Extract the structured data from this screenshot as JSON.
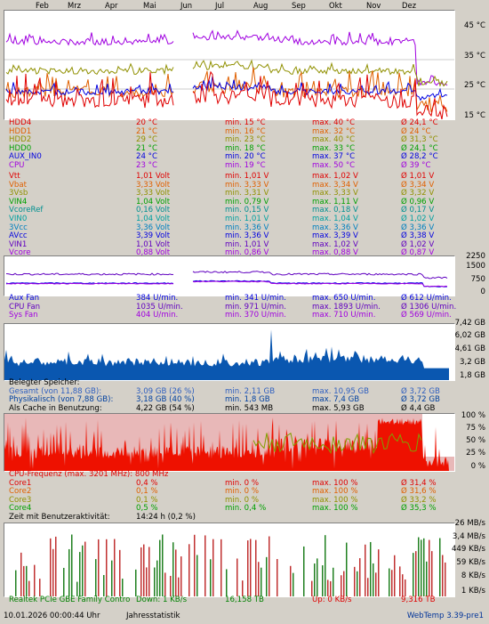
{
  "months": [
    "Feb",
    "Mrz",
    "Apr",
    "Mai",
    "Jun",
    "Jul",
    "Aug",
    "Sep",
    "Okt",
    "Nov",
    "Dez"
  ],
  "temp_axis": [
    "45 °C",
    "35 °C",
    "25 °C",
    "15 °C"
  ],
  "temps": [
    {
      "name": "HDD4",
      "cur": "20 °C",
      "min": "min. 15 °C",
      "max": "max. 40 °C",
      "avg": "Ø 24,1 °C",
      "color": "#e00000"
    },
    {
      "name": "HDD1",
      "cur": "21 °C",
      "min": "min. 16 °C",
      "max": "max. 32 °C",
      "avg": "Ø 24 °C",
      "color": "#e06000"
    },
    {
      "name": "HDD2",
      "cur": "29 °C",
      "min": "min. 23 °C",
      "max": "max. 40 °C",
      "avg": "Ø 31,3 °C",
      "color": "#909000"
    },
    {
      "name": "HDD0",
      "cur": "21 °C",
      "min": "min. 18 °C",
      "max": "max. 33 °C",
      "avg": "Ø 24,1 °C",
      "color": "#00a000"
    },
    {
      "name": "AUX_IN0",
      "cur": "24 °C",
      "min": "min. 20 °C",
      "max": "max. 37 °C",
      "avg": "Ø 28,2 °C",
      "color": "#0000e0"
    },
    {
      "name": "CPU",
      "cur": "23 °C",
      "min": "min. 19 °C",
      "max": "max. 50 °C",
      "avg": "Ø 39 °C",
      "color": "#a000e0"
    }
  ],
  "volts": [
    {
      "name": "Vtt",
      "cur": "1,01 Volt",
      "min": "min. 1,01 V",
      "max": "max. 1,02 V",
      "avg": "Ø 1,01 V",
      "color": "#e00000"
    },
    {
      "name": "Vbat",
      "cur": "3,33 Volt",
      "min": "min. 3,33 V",
      "max": "max. 3,34 V",
      "avg": "Ø 3,34 V",
      "color": "#e06000"
    },
    {
      "name": "3Vsb",
      "cur": "3,33 Volt",
      "min": "min. 3,31 V",
      "max": "max. 3,33 V",
      "avg": "Ø 3,32 V",
      "color": "#909000"
    },
    {
      "name": "VIN4",
      "cur": "1,04 Volt",
      "min": "min. 0,79 V",
      "max": "max. 1,11 V",
      "avg": "Ø 0,96 V",
      "color": "#00a000"
    },
    {
      "name": "VcoreRef",
      "cur": "0,16 Volt",
      "min": "min. 0,15 V",
      "max": "max. 0,18 V",
      "avg": "Ø 0,17 V",
      "color": "#009090"
    },
    {
      "name": "VIN0",
      "cur": "1,04 Volt",
      "min": "min. 1,01 V",
      "max": "max. 1,04 V",
      "avg": "Ø 1,02 V",
      "color": "#00a0a0"
    },
    {
      "name": "3Vcc",
      "cur": "3,36 Volt",
      "min": "min. 3,36 V",
      "max": "max. 3,36 V",
      "avg": "Ø 3,36 V",
      "color": "#0080c0"
    },
    {
      "name": "AVcc",
      "cur": "3,39 Volt",
      "min": "min. 3,36 V",
      "max": "max. 3,39 V",
      "avg": "Ø 3,38 V",
      "color": "#0000e0"
    },
    {
      "name": "VIN1",
      "cur": "1,01 Volt",
      "min": "min. 1,01 V",
      "max": "max. 1,02 V",
      "avg": "Ø 1,02 V",
      "color": "#6000c0"
    },
    {
      "name": "Vcore",
      "cur": "0,88 Volt",
      "min": "min. 0,86 V",
      "max": "max. 0,88 V",
      "avg": "Ø 0,87 V",
      "color": "#a000e0"
    }
  ],
  "fan_axis": [
    "2250",
    "1500",
    "750",
    "0"
  ],
  "fans": [
    {
      "name": "Aux Fan",
      "cur": "384 U/min.",
      "min": "min. 341 U/min.",
      "max": "max. 650 U/min.",
      "avg": "Ø 612 U/min.",
      "color": "#0000e0"
    },
    {
      "name": "CPU Fan",
      "cur": "1035 U/min.",
      "min": "min. 971 U/min.",
      "max": "max. 1893 U/min.",
      "avg": "Ø 1306 U/min.",
      "color": "#6000c0"
    },
    {
      "name": "Sys Fan",
      "cur": "404 U/min.",
      "min": "min. 370 U/min.",
      "max": "max. 710 U/min.",
      "avg": "Ø 569 U/min.",
      "color": "#a000e0"
    }
  ],
  "mem_axis": [
    "7,42 GB",
    "6,02 GB",
    "4,61 GB",
    "3,2 GB",
    "1,8 GB"
  ],
  "mem_title": "Belegter Speicher:",
  "mem": [
    {
      "name": "Gesamt (von 11,88 GB):",
      "cur": "3,09 GB (26 %)",
      "min": "min. 2,11 GB",
      "max": "max. 10,95 GB",
      "avg": "Ø 3,72 GB",
      "color": "#3060c0"
    },
    {
      "name": "Physikalisch (von 7,88 GB):",
      "cur": "3,18 GB (40 %)",
      "min": "min. 1,8 GB",
      "max": "max. 7,4 GB",
      "avg": "Ø 3,72 GB",
      "color": "#0040a0"
    },
    {
      "name": "Als Cache in Benutzung:",
      "cur": "4,22 GB (54 %)",
      "min": "min. 543 MB",
      "max": "max. 5,93 GB",
      "avg": "Ø 4,4 GB",
      "color": "#000000"
    }
  ],
  "cpu_axis": [
    "100 %",
    "75 %",
    "50 %",
    "25 %",
    "0 %"
  ],
  "cpu_freq": "CPU-Frequenz (max. 3201 MHz): 800 MHz",
  "cores": [
    {
      "name": "Core1",
      "cur": "0,4 %",
      "min": "min. 0 %",
      "max": "max. 100 %",
      "avg": "Ø 31,4 %",
      "color": "#e00000"
    },
    {
      "name": "Core2",
      "cur": "0,1 %",
      "min": "min. 0 %",
      "max": "max. 100 %",
      "avg": "Ø 31,6 %",
      "color": "#e06000"
    },
    {
      "name": "Core3",
      "cur": "0,1 %",
      "min": "min. 0 %",
      "max": "max. 100 %",
      "avg": "Ø 33,2 %",
      "color": "#909000"
    },
    {
      "name": "Core4",
      "cur": "0,5 %",
      "min": "min. 0,4 %",
      "max": "max. 100 %",
      "avg": "Ø 35,3 %",
      "color": "#00a000"
    }
  ],
  "activity_label": "Zeit mit Benutzeraktivität:",
  "activity_value": "14:24 h (0,2 %)",
  "net_axis": [
    "26 MB/s",
    "3,4 MB/s",
    "449 KB/s",
    "59 KB/s",
    "8 KB/s",
    "1 KB/s"
  ],
  "net": {
    "adapter": "Realtek PCIe GBE Family Contro",
    "down": "Down: 1 KB/s",
    "down_total": "16,158 TB",
    "up": "Up: 0 KB/s",
    "up_total": "9,316 TB"
  },
  "footer": {
    "datetime": "10.01.2026 00:00:44 Uhr",
    "mode": "Jahresstatistik",
    "app": "WebTemp 3.39-pre1"
  }
}
